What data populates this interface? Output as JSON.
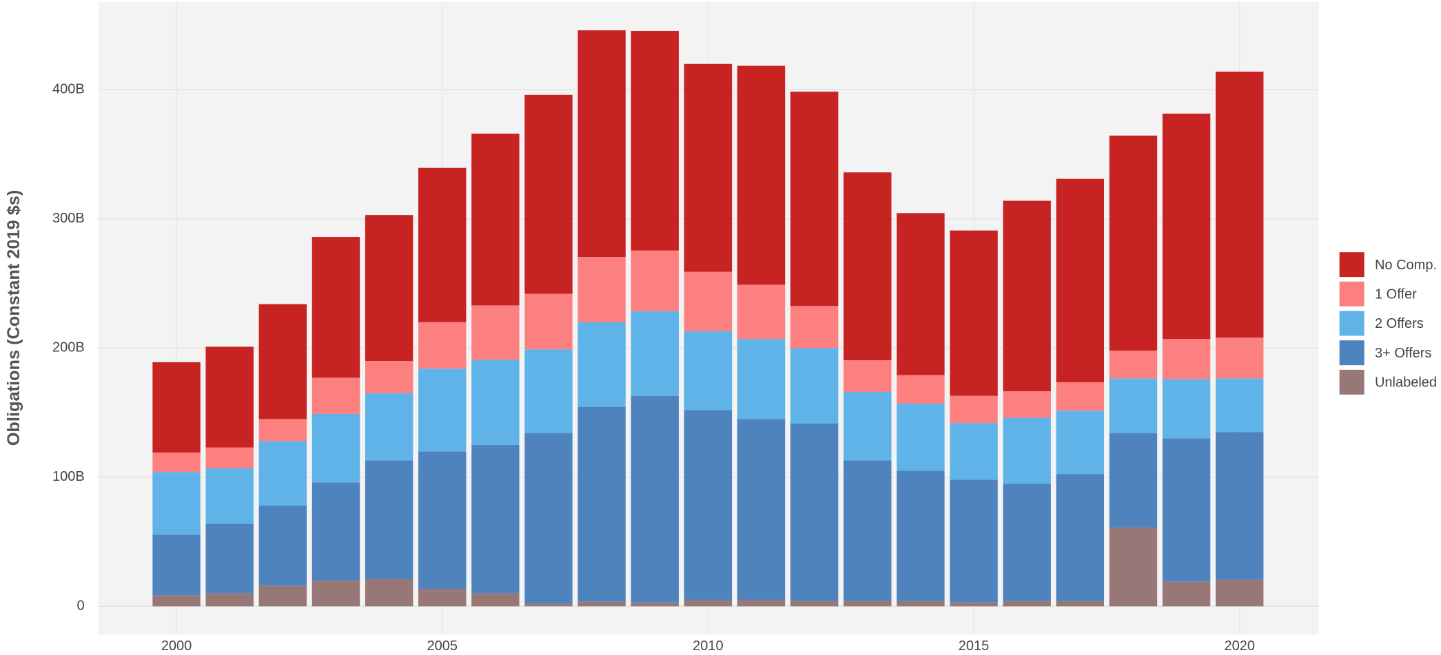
{
  "chart_data": {
    "type": "stacked_bar",
    "ylabel": "Obligations (Constant 2019 $s)",
    "x": [
      2000,
      2001,
      2002,
      2003,
      2004,
      2005,
      2006,
      2007,
      2008,
      2009,
      2010,
      2011,
      2012,
      2013,
      2014,
      2015,
      2016,
      2017,
      2018,
      2019,
      2020
    ],
    "xlim": [
      1998.53,
      2021.49
    ],
    "xticks": [
      2000,
      2005,
      2010,
      2015,
      2020
    ],
    "ylim": [
      -22,
      468
    ],
    "yticks": [
      0,
      {
        "value": 100,
        "label": "100B"
      },
      {
        "value": 200,
        "label": "200B"
      },
      {
        "value": 300,
        "label": "300B"
      },
      {
        "value": 400,
        "label": "400B"
      }
    ],
    "grid": true,
    "legend": "right",
    "series": [
      {
        "name": "No Comp.",
        "color": "#c82323",
        "values": [
          70,
          78,
          89,
          109,
          113,
          119.5,
          133,
          154,
          175.5,
          170,
          161,
          169.5,
          166,
          145.5,
          125.5,
          128,
          147.5,
          157.5,
          166.5,
          174.5,
          206
        ]
      },
      {
        "name": "1 Offer",
        "color": "#fd8080",
        "values": [
          15,
          16,
          17,
          28,
          25,
          36,
          42,
          43,
          50.5,
          47,
          46,
          42,
          32.5,
          24.5,
          22,
          21,
          20.5,
          22,
          21.5,
          31,
          31.5
        ]
      },
      {
        "name": "2 Offers",
        "color": "#60b3e8",
        "values": [
          48.5,
          43,
          50,
          53,
          52,
          64,
          66,
          65,
          65.5,
          65.5,
          61,
          62,
          58.5,
          53,
          52,
          44,
          51,
          49,
          42.5,
          46,
          41.5
        ]
      },
      {
        "name": "3+ Offers",
        "color": "#4e83be",
        "values": [
          47,
          54,
          62,
          76,
          92,
          106.5,
          115,
          132,
          151,
          160,
          147,
          140,
          137.5,
          109,
          101,
          95,
          91,
          98.5,
          73,
          111,
          114.5
        ]
      },
      {
        "name": "Unlabeled",
        "color": "#977876",
        "values": [
          8.5,
          10,
          16,
          20,
          21,
          13.5,
          10,
          2,
          3.5,
          3,
          5,
          5,
          4,
          4,
          4,
          3,
          4,
          4,
          61,
          19,
          20.5
        ]
      }
    ]
  }
}
